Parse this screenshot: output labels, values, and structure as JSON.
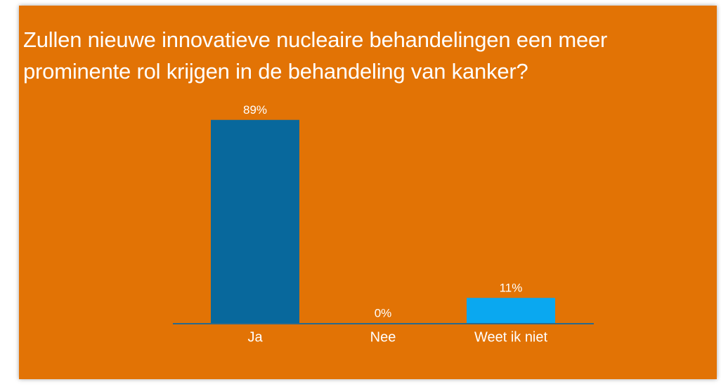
{
  "chart_data": {
    "type": "bar",
    "title": "Zullen nieuwe innovatieve nucleaire behandelingen een meer prominente rol krijgen in de behandeling van kanker?",
    "categories": [
      "Ja",
      "Nee",
      "Weet ik niet"
    ],
    "values": [
      89,
      0,
      11
    ],
    "value_labels": [
      "89%",
      "0%",
      "11%"
    ],
    "colors": [
      "#08689c",
      "#08689c",
      "#0aa8f0"
    ]
  }
}
